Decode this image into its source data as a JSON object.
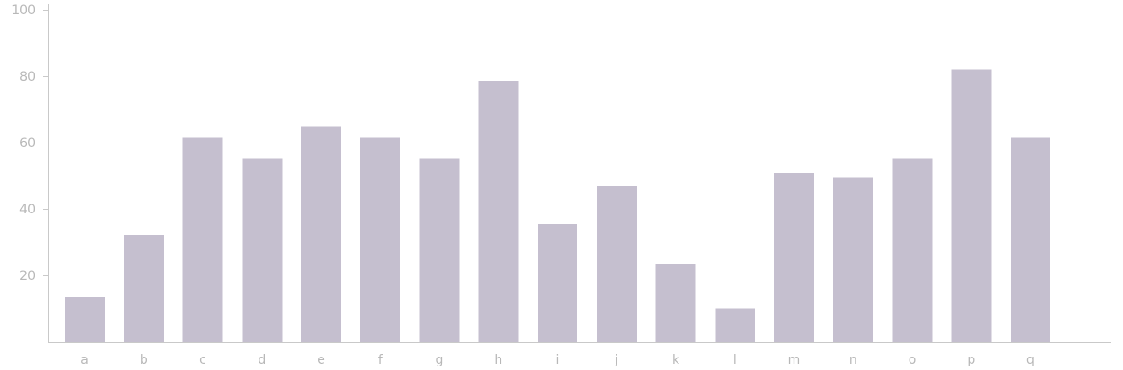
{
  "chart_data": {
    "type": "bar",
    "title": "",
    "xlabel": "",
    "ylabel": "",
    "categories": [
      "a",
      "b",
      "c",
      "d",
      "e",
      "f",
      "g",
      "h",
      "i",
      "j",
      "k",
      "l",
      "m",
      "n",
      "o",
      "p",
      "q"
    ],
    "values": [
      13.5,
      32,
      61.5,
      55,
      65,
      61.5,
      55,
      78.5,
      35.5,
      47,
      23.5,
      10,
      51,
      49.5,
      55,
      82,
      61.5
    ],
    "ylim": [
      0,
      100
    ],
    "yticks": [
      20,
      40,
      60,
      80,
      100
    ],
    "grid": false,
    "legend": "none",
    "bar_color": "#c5bfcf",
    "axis_color": "#c9c9c9",
    "label_color": "#b8b8b8"
  }
}
